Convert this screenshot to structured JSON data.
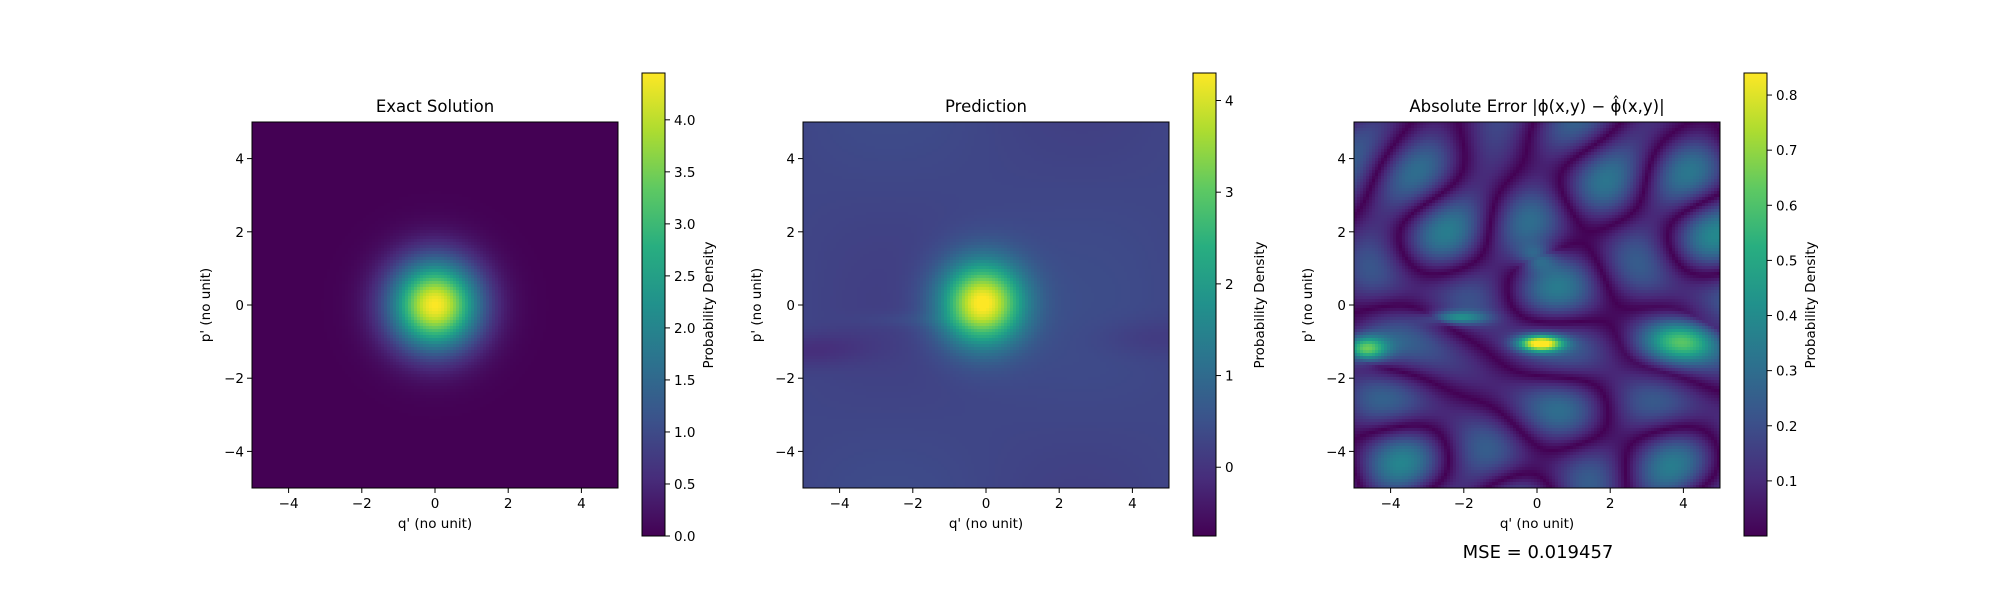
{
  "chart_data": [
    {
      "type": "heatmap",
      "title": "Exact Solution",
      "xlabel": "q' (no unit)",
      "ylabel": "p' (no unit)",
      "xlim": [
        -5,
        5
      ],
      "ylim": [
        -5,
        5
      ],
      "xticks": [
        "−4",
        "−2",
        "0",
        "2",
        "4"
      ],
      "yticks": [
        "−4",
        "−2",
        "0",
        "2",
        "4"
      ],
      "colormap": "viridis",
      "colorbar": {
        "label": "Probability Density",
        "range": [
          0.0,
          4.45
        ],
        "ticks": [
          0.0,
          0.5,
          1.0,
          1.5,
          2.0,
          2.5,
          3.0,
          3.5,
          4.0
        ],
        "tick_labels": [
          "0.0",
          "0.5",
          "1.0",
          "1.5",
          "2.0",
          "2.5",
          "3.0",
          "3.5",
          "4.0"
        ]
      },
      "field": {
        "kind": "gaussian",
        "center": [
          0,
          0
        ],
        "sigma": 0.85,
        "peak": 4.45,
        "offset": 0.0
      }
    },
    {
      "type": "heatmap",
      "title": "Prediction",
      "xlabel": "q' (no unit)",
      "ylabel": "p' (no unit)",
      "xlim": [
        -5,
        5
      ],
      "ylim": [
        -5,
        5
      ],
      "xticks": [
        "−4",
        "−2",
        "0",
        "2",
        "4"
      ],
      "yticks": [
        "−4",
        "−2",
        "0",
        "2",
        "4"
      ],
      "colormap": "viridis",
      "colorbar": {
        "label": "Probability Density",
        "range": [
          -0.75,
          4.3
        ],
        "ticks": [
          0,
          1,
          2,
          3,
          4
        ],
        "tick_labels": [
          "0",
          "1",
          "2",
          "3",
          "4"
        ]
      },
      "field": {
        "kind": "gaussian",
        "center": [
          -0.1,
          0.05
        ],
        "sigma": 0.78,
        "peak": 4.1,
        "offset": 0.3
      }
    },
    {
      "type": "heatmap",
      "title": "Absolute Error |ϕ(x,y) − ϕ̂(x,y)|",
      "xlabel": "q' (no unit)",
      "ylabel": "p' (no unit)",
      "xlim": [
        -5,
        5
      ],
      "ylim": [
        -5,
        5
      ],
      "xticks": [
        "−4",
        "−2",
        "0",
        "2",
        "4"
      ],
      "yticks": [
        "−4",
        "−2",
        "0",
        "2",
        "4"
      ],
      "colormap": "viridis",
      "colorbar": {
        "label": "Probability Density",
        "range": [
          0.0,
          0.84
        ],
        "ticks": [
          0.1,
          0.2,
          0.3,
          0.4,
          0.5,
          0.6,
          0.7,
          0.8
        ],
        "tick_labels": [
          "0.1",
          "0.2",
          "0.3",
          "0.4",
          "0.5",
          "0.6",
          "0.7",
          "0.8"
        ]
      },
      "annotation": "MSE = 0.019457"
    }
  ]
}
